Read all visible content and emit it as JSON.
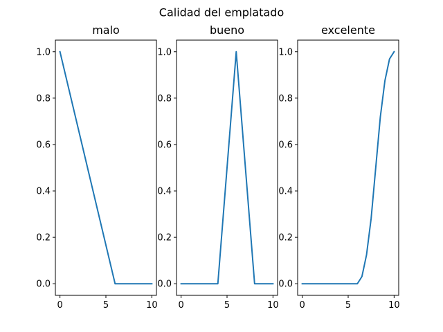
{
  "chart_data": {
    "title": "Calidad del emplatado",
    "line_color": "#1f77b4",
    "subplots": [
      {
        "type": "line",
        "title": "malo",
        "x": [
          0,
          6,
          10
        ],
        "y": [
          1.0,
          0.0,
          0.0
        ],
        "xlim": [
          -0.5,
          10.5
        ],
        "ylim": [
          -0.05,
          1.05
        ],
        "xticks": [
          0,
          5,
          10
        ],
        "yticks": [
          0.0,
          0.2,
          0.4,
          0.6,
          0.8,
          1.0
        ],
        "xticklabels": [
          "0",
          "5",
          "10"
        ],
        "yticklabels": [
          "0.0",
          "0.2",
          "0.4",
          "0.6",
          "0.8",
          "1.0"
        ]
      },
      {
        "type": "line",
        "title": "bueno",
        "x": [
          0,
          4,
          6,
          8,
          10
        ],
        "y": [
          0.0,
          0.0,
          1.0,
          0.0,
          0.0
        ],
        "xlim": [
          -0.5,
          10.5
        ],
        "ylim": [
          -0.05,
          1.05
        ],
        "xticks": [
          0,
          5,
          10
        ],
        "yticks": [
          0.0,
          0.2,
          0.4,
          0.6,
          0.8,
          1.0
        ],
        "xticklabels": [
          "0",
          "5",
          "10"
        ],
        "yticklabels": [
          "0.0",
          "0.2",
          "0.4",
          "0.6",
          "0.8",
          "1.0"
        ]
      },
      {
        "type": "line",
        "title": "excelente",
        "x": [
          0,
          6,
          6.5,
          7,
          7.5,
          8,
          8.5,
          9,
          9.5,
          10
        ],
        "y": [
          0.0,
          0.0,
          0.03125,
          0.125,
          0.28125,
          0.5,
          0.71875,
          0.875,
          0.96875,
          1.0
        ],
        "xlim": [
          -0.5,
          10.5
        ],
        "ylim": [
          -0.05,
          1.05
        ],
        "xticks": [
          0,
          5,
          10
        ],
        "yticks": [
          0.0,
          0.2,
          0.4,
          0.6,
          0.8,
          1.0
        ],
        "xticklabels": [
          "0",
          "5",
          "10"
        ],
        "yticklabels": [
          "0.0",
          "0.2",
          "0.4",
          "0.6",
          "0.8",
          "1.0"
        ]
      }
    ]
  }
}
